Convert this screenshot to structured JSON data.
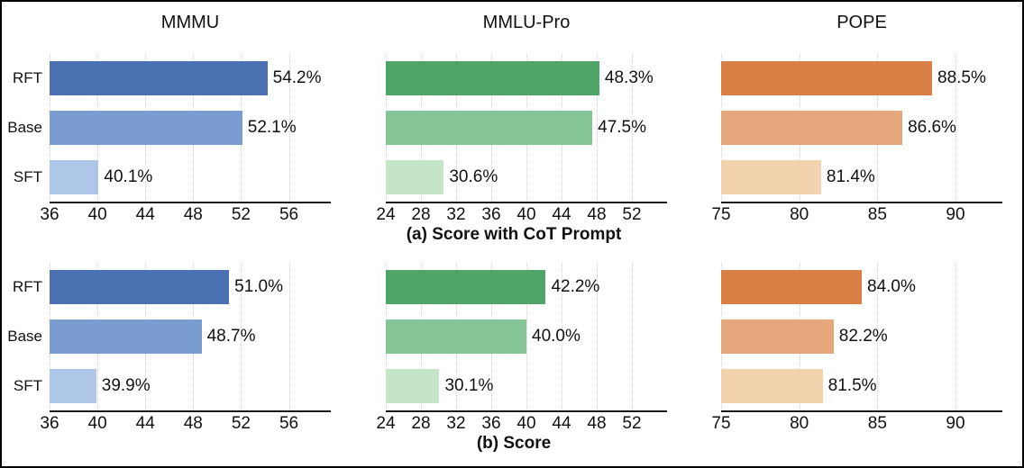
{
  "figure": {
    "background": "#ffffff",
    "border_color": "#000000",
    "captions": {
      "a": "(a) Score with CoT Prompt",
      "b": "(b) Score"
    }
  },
  "palette": {
    "blue": [
      "#4a70b1",
      "#7b9cd1",
      "#aec6e8"
    ],
    "green": [
      "#4fa468",
      "#85c494",
      "#c5e5c9"
    ],
    "orange": [
      "#da7f45",
      "#e6a77d",
      "#f2d3ae"
    ],
    "grid_color": "#d6d6d6",
    "axis_color": "#1a1a1a"
  },
  "chart_data": [
    {
      "type": "bar",
      "orientation": "horizontal",
      "group": "a",
      "title": "MMMU",
      "show_title": true,
      "show_category_labels": true,
      "categories": [
        "RFT",
        "Base",
        "SFT"
      ],
      "values": [
        54.2,
        52.1,
        40.1
      ],
      "value_labels": [
        "54.2%",
        "52.1%",
        "40.1%"
      ],
      "xlim": [
        36,
        59.5
      ],
      "xticks": [
        36,
        40,
        44,
        48,
        52,
        56
      ],
      "bar_colors": [
        "#4a70b1",
        "#7b9cd1",
        "#aec6e8"
      ],
      "grid": "vertical-dotted",
      "legend": "none"
    },
    {
      "type": "bar",
      "orientation": "horizontal",
      "group": "a",
      "title": "MMLU-Pro",
      "show_title": true,
      "show_category_labels": false,
      "categories": [
        "RFT",
        "Base",
        "SFT"
      ],
      "values": [
        48.3,
        47.5,
        30.6
      ],
      "value_labels": [
        "48.3%",
        "47.5%",
        "30.6%"
      ],
      "xlim": [
        24,
        56
      ],
      "xticks": [
        24,
        28,
        32,
        36,
        40,
        44,
        48,
        52
      ],
      "bar_colors": [
        "#4fa468",
        "#85c494",
        "#c5e5c9"
      ],
      "grid": "vertical-dotted",
      "legend": "none"
    },
    {
      "type": "bar",
      "orientation": "horizontal",
      "group": "a",
      "title": "POPE",
      "show_title": true,
      "show_category_labels": false,
      "categories": [
        "RFT",
        "Base",
        "SFT"
      ],
      "values": [
        88.5,
        86.6,
        81.4
      ],
      "value_labels": [
        "88.5%",
        "86.6%",
        "81.4%"
      ],
      "xlim": [
        75,
        93
      ],
      "xticks": [
        75,
        80,
        85,
        90
      ],
      "bar_colors": [
        "#da7f45",
        "#e6a77d",
        "#f2d3ae"
      ],
      "grid": "vertical-dotted",
      "legend": "none"
    },
    {
      "type": "bar",
      "orientation": "horizontal",
      "group": "b",
      "title": "MMMU",
      "show_title": false,
      "show_category_labels": true,
      "categories": [
        "RFT",
        "Base",
        "SFT"
      ],
      "values": [
        51.0,
        48.7,
        39.9
      ],
      "value_labels": [
        "51.0%",
        "48.7%",
        "39.9%"
      ],
      "xlim": [
        36,
        59.5
      ],
      "xticks": [
        36,
        40,
        44,
        48,
        52,
        56
      ],
      "bar_colors": [
        "#4a70b1",
        "#7b9cd1",
        "#aec6e8"
      ],
      "grid": "vertical-dotted",
      "legend": "none"
    },
    {
      "type": "bar",
      "orientation": "horizontal",
      "group": "b",
      "title": "MMLU-Pro",
      "show_title": false,
      "show_category_labels": false,
      "categories": [
        "RFT",
        "Base",
        "SFT"
      ],
      "values": [
        42.2,
        40.0,
        30.1
      ],
      "value_labels": [
        "42.2%",
        "40.0%",
        "30.1%"
      ],
      "xlim": [
        24,
        56
      ],
      "xticks": [
        24,
        28,
        32,
        36,
        40,
        44,
        48,
        52
      ],
      "bar_colors": [
        "#4fa468",
        "#85c494",
        "#c5e5c9"
      ],
      "grid": "vertical-dotted",
      "legend": "none"
    },
    {
      "type": "bar",
      "orientation": "horizontal",
      "group": "b",
      "title": "POPE",
      "show_title": false,
      "show_category_labels": false,
      "categories": [
        "RFT",
        "Base",
        "SFT"
      ],
      "values": [
        84.0,
        82.2,
        81.5
      ],
      "value_labels": [
        "84.0%",
        "82.2%",
        "81.5%"
      ],
      "xlim": [
        75,
        93
      ],
      "xticks": [
        75,
        80,
        85,
        90
      ],
      "bar_colors": [
        "#da7f45",
        "#e6a77d",
        "#f2d3ae"
      ],
      "grid": "vertical-dotted",
      "legend": "none"
    }
  ]
}
